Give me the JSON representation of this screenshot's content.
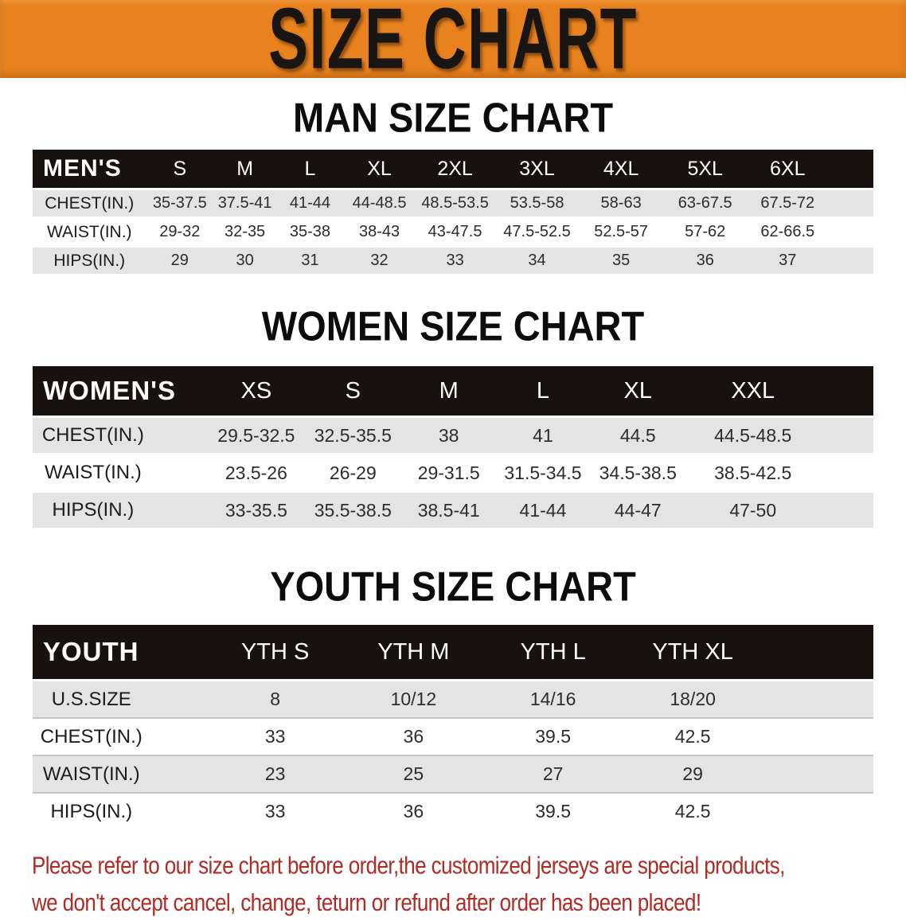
{
  "banner": {
    "title": "SIZE CHART"
  },
  "colors": {
    "banner_bg": "#E8821F",
    "table_header_bg": "#17120F",
    "row_shade": "#E4E4E4",
    "note_text": "#AF2B24"
  },
  "sections": {
    "men": {
      "heading": "MAN SIZE CHART",
      "table": {
        "label": "MEN'S",
        "columns": [
          "S",
          "M",
          "L",
          "XL",
          "2XL",
          "3XL",
          "4XL",
          "5XL",
          "6XL"
        ],
        "rows": [
          {
            "label": "CHEST(IN.)",
            "values": [
              "35-37.5",
              "37.5-41",
              "41-44",
              "44-48.5",
              "48.5-53.5",
              "53.5-58",
              "58-63",
              "63-67.5",
              "67.5-72"
            ]
          },
          {
            "label": "WAIST(IN.)",
            "values": [
              "29-32",
              "32-35",
              "35-38",
              "38-43",
              "43-47.5",
              "47.5-52.5",
              "52.5-57",
              "57-62",
              "62-66.5"
            ]
          },
          {
            "label": "HIPS(IN.)",
            "values": [
              "29",
              "30",
              "31",
              "32",
              "33",
              "34",
              "35",
              "36",
              "37"
            ]
          }
        ]
      }
    },
    "women": {
      "heading": "WOMEN SIZE CHART",
      "table": {
        "label": "WOMEN'S",
        "columns": [
          "XS",
          "S",
          "M",
          "L",
          "XL",
          "XXL"
        ],
        "rows": [
          {
            "label": "CHEST(IN.)",
            "values": [
              "29.5-32.5",
              "32.5-35.5",
              "38",
              "41",
              "44.5",
              "44.5-48.5"
            ]
          },
          {
            "label": "WAIST(IN.)",
            "values": [
              "23.5-26",
              "26-29",
              "29-31.5",
              "31.5-34.5",
              "34.5-38.5",
              "38.5-42.5"
            ]
          },
          {
            "label": "HIPS(IN.)",
            "values": [
              "33-35.5",
              "35.5-38.5",
              "38.5-41",
              "41-44",
              "44-47",
              "47-50"
            ]
          }
        ]
      }
    },
    "youth": {
      "heading": "YOUTH SIZE CHART",
      "table": {
        "label": "YOUTH",
        "columns": [
          "YTH S",
          "YTH M",
          "YTH L",
          "YTH XL"
        ],
        "rows": [
          {
            "label": "U.S.SIZE",
            "values": [
              "8",
              "10/12",
              "14/16",
              "18/20"
            ]
          },
          {
            "label": "CHEST(IN.)",
            "values": [
              "33",
              "36",
              "39.5",
              "42.5"
            ]
          },
          {
            "label": "WAIST(IN.)",
            "values": [
              "23",
              "25",
              "27",
              "29"
            ]
          },
          {
            "label": "HIPS(IN.)",
            "values": [
              "33",
              "36",
              "39.5",
              "42.5"
            ]
          }
        ]
      }
    }
  },
  "footer": {
    "line1": "Please refer to our size chart before order,the customized jerseys are special products,",
    "line2": "we don't accept cancel, change, teturn or refund after order has been placed!"
  }
}
